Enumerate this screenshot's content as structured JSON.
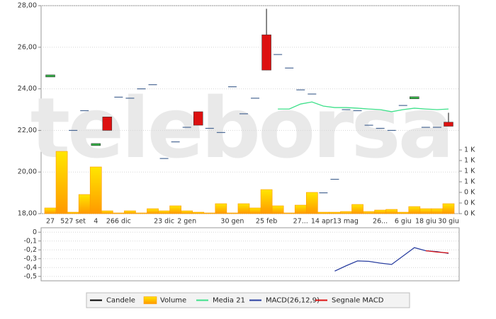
{
  "chart_data": [
    {
      "type": "candlestick",
      "watermark": "teleborsa",
      "categories": [
        "27",
        null,
        "527 set",
        null,
        "4",
        null,
        "266 dic",
        null,
        null,
        null,
        "23 dic",
        null,
        "2 gen",
        null,
        null,
        null,
        "30 gen",
        null,
        null,
        "25 feb",
        null,
        null,
        "27...",
        null,
        null,
        "14 apr13 mag",
        null,
        null,
        null,
        "26...",
        null,
        "6 giu",
        null,
        "18 giu",
        null,
        "30 giu"
      ],
      "series": [
        {
          "name": "Candele",
          "type": "candlestick",
          "color": "#000000",
          "up_color": "#33aa44",
          "down_color": "#dd1111",
          "flat_color": "#4a6894",
          "open": [
            24.58,
            null,
            22.0,
            22.95,
            21.28,
            22.65,
            23.6,
            23.55,
            24.0,
            24.2,
            20.65,
            21.45,
            22.15,
            22.9,
            22.1,
            21.9,
            24.1,
            22.8,
            23.55,
            26.6,
            25.65,
            25.0,
            23.95,
            23.75,
            19.0,
            19.65,
            23.0,
            22.95,
            22.25,
            22.1,
            22.0,
            23.2,
            23.53,
            22.15,
            22.15,
            22.4
          ],
          "high": [
            24.62,
            null,
            22.0,
            22.95,
            21.32,
            22.65,
            23.6,
            23.55,
            24.0,
            24.2,
            20.65,
            21.45,
            22.15,
            22.9,
            22.1,
            21.9,
            24.1,
            22.8,
            23.55,
            27.85,
            25.65,
            25.0,
            23.95,
            23.75,
            19.0,
            19.65,
            23.0,
            22.95,
            22.25,
            22.1,
            22.0,
            23.2,
            23.57,
            22.15,
            22.15,
            22.85
          ],
          "low": [
            24.58,
            null,
            22.0,
            22.95,
            21.28,
            22.0,
            23.6,
            23.55,
            24.0,
            24.2,
            20.65,
            21.45,
            22.15,
            22.25,
            22.1,
            21.9,
            24.1,
            22.8,
            23.55,
            24.9,
            25.65,
            25.0,
            23.95,
            23.75,
            19.0,
            19.65,
            23.0,
            22.95,
            22.25,
            22.1,
            22.0,
            23.2,
            23.53,
            22.15,
            22.15,
            22.2
          ],
          "close": [
            24.62,
            null,
            22.0,
            22.95,
            21.32,
            22.0,
            23.6,
            23.55,
            24.0,
            24.2,
            20.65,
            21.45,
            22.15,
            22.25,
            22.1,
            21.9,
            24.1,
            22.8,
            23.55,
            24.9,
            25.65,
            25.0,
            23.95,
            23.75,
            19.0,
            19.65,
            23.0,
            22.95,
            22.25,
            22.1,
            22.0,
            23.2,
            23.57,
            22.15,
            22.15,
            22.2
          ]
        },
        {
          "name": "Volume",
          "type": "bar",
          "axis": "y2",
          "color": "#ff9900",
          "values": [
            107,
            1173,
            27,
            360,
            880,
            53,
            13,
            53,
            13,
            93,
            53,
            147,
            53,
            27,
            13,
            187,
            13,
            187,
            107,
            453,
            147,
            13,
            160,
            400,
            27,
            27,
            40,
            173,
            40,
            67,
            80,
            27,
            133,
            93,
            93,
            187
          ]
        },
        {
          "name": "Media 21",
          "type": "line",
          "color": "#3de08a",
          "values": [
            null,
            null,
            null,
            null,
            null,
            null,
            null,
            null,
            null,
            null,
            null,
            null,
            null,
            null,
            null,
            null,
            null,
            null,
            null,
            null,
            23.03,
            23.03,
            23.27,
            23.37,
            23.17,
            23.1,
            23.1,
            23.07,
            23.03,
            23.0,
            22.9,
            23.0,
            23.07,
            23.03,
            23.0,
            23.03
          ]
        }
      ],
      "ylim": [
        18,
        28
      ],
      "yticks": [
        {
          "value": 18,
          "label": "18,00"
        },
        {
          "value": 20,
          "label": "20,00"
        },
        {
          "value": 22,
          "label": "22,00"
        },
        {
          "value": 24,
          "label": "24,00"
        },
        {
          "value": 26,
          "label": "26,00"
        },
        {
          "value": 28,
          "label": "28,00"
        }
      ],
      "y2lim": [
        0,
        3920
      ],
      "y2ticks": [
        {
          "value": 0,
          "label": "0 K"
        },
        {
          "value": 200,
          "label": "0 K"
        },
        {
          "value": 400,
          "label": "0 K"
        },
        {
          "value": 600,
          "label": "1 K"
        },
        {
          "value": 800,
          "label": "1 K"
        },
        {
          "value": 1000,
          "label": "1 K"
        },
        {
          "value": 1200,
          "label": "1 K"
        }
      ],
      "grid": true,
      "legend": "bottom"
    },
    {
      "type": "line",
      "series": [
        {
          "name": "MACD(26,12,9)",
          "type": "line",
          "color": "#2a3fa0",
          "values": [
            null,
            null,
            null,
            null,
            null,
            null,
            null,
            null,
            null,
            null,
            null,
            null,
            null,
            null,
            null,
            null,
            null,
            null,
            null,
            null,
            null,
            null,
            null,
            null,
            null,
            -0.44,
            -0.38,
            -0.325,
            -0.33,
            -0.35,
            -0.365,
            -0.27,
            -0.175,
            -0.21,
            -0.22,
            -0.24
          ]
        },
        {
          "name": "Segnale MACD",
          "type": "line",
          "color": "#dd1111",
          "values": [
            null,
            null,
            null,
            null,
            null,
            null,
            null,
            null,
            null,
            null,
            null,
            null,
            null,
            null,
            null,
            null,
            null,
            null,
            null,
            null,
            null,
            null,
            null,
            null,
            null,
            null,
            null,
            null,
            null,
            null,
            null,
            null,
            null,
            -0.21,
            -0.225,
            -0.235
          ]
        }
      ],
      "ylim": [
        -0.55,
        0.05
      ],
      "yticks": [
        0,
        {
          "value": -0.1,
          "label": "-0,1"
        },
        {
          "value": -0.2,
          "label": "-0,2"
        },
        {
          "value": -0.3,
          "label": "-0,3"
        },
        {
          "value": -0.4,
          "label": "-0,4"
        },
        {
          "value": -0.5,
          "label": "-0,5"
        }
      ],
      "grid": true
    }
  ]
}
